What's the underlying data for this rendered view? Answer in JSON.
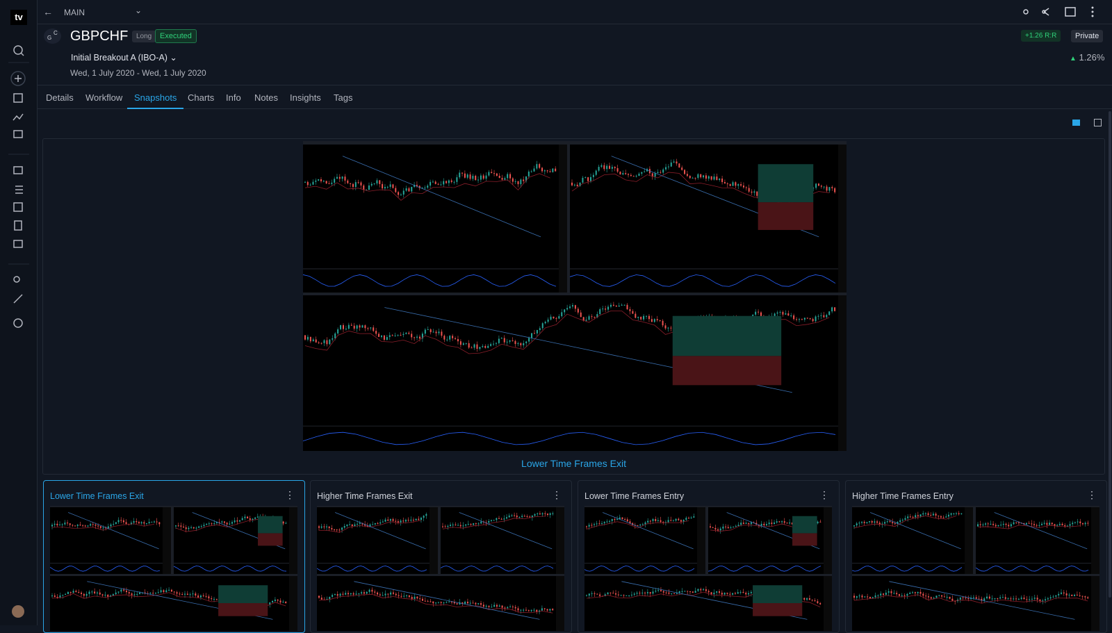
{
  "app": {
    "logo": "tv",
    "breadcrumb": "MAIN"
  },
  "trade": {
    "avatar": "C",
    "avatar_sub": "G",
    "symbol": "GBPCHF",
    "side": "Long",
    "status": "Executed",
    "setup": "Initial Breakout A (IBO-A)",
    "dates": "Wed, 1 July 2020 - Wed, 1 July 2020",
    "rr_value": "+1.26",
    "rr_label": "R:R",
    "visibility": "Private",
    "return_value": "1.26",
    "return_unit": "%"
  },
  "tabs": {
    "items": [
      "Details",
      "Workflow",
      "Snapshots",
      "Charts",
      "Info",
      "Notes",
      "Insights",
      "Tags"
    ],
    "active": 2
  },
  "snapshot": {
    "caption": "Lower Time Frames Exit"
  },
  "thumbnails": {
    "items": [
      "Lower Time Frames Exit",
      "Higher Time Frames Exit",
      "Lower Time Frames Entry",
      "Higher Time Frames Entry"
    ],
    "active": 0
  }
}
